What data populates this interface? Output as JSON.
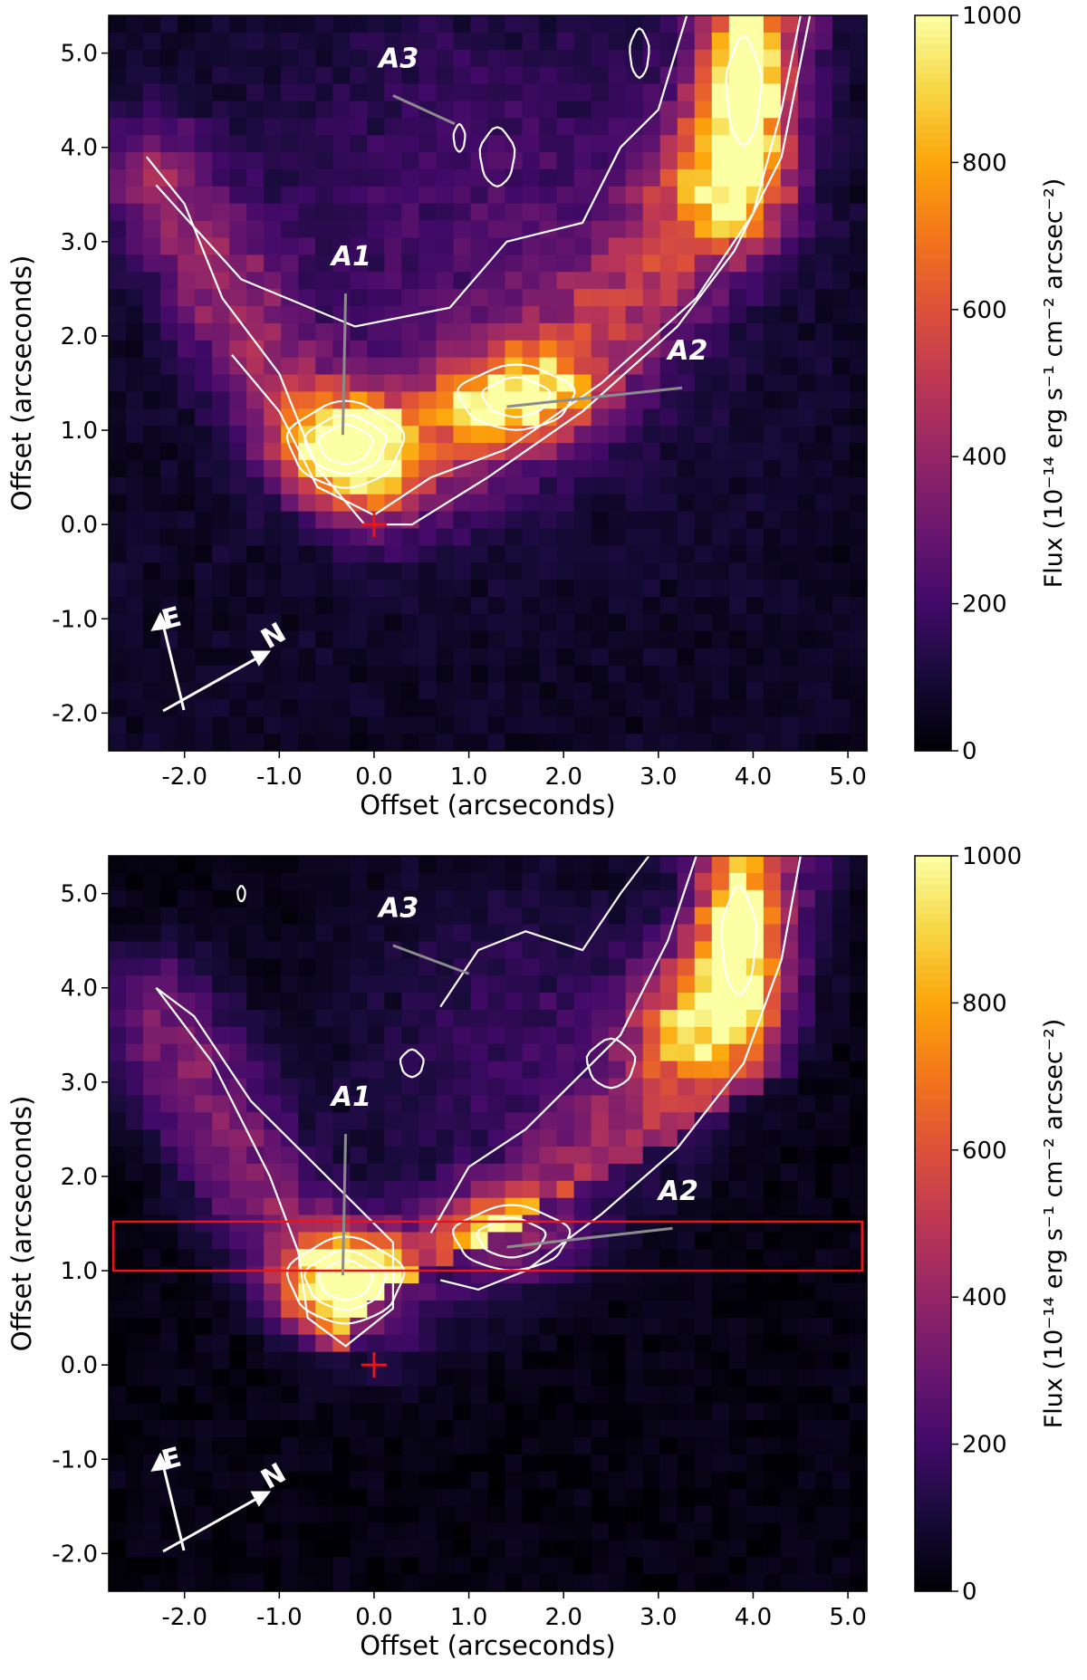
{
  "chart_data": [
    {
      "type": "heatmap",
      "panel": "top",
      "title": "",
      "xlabel": "Offset (arcseconds)",
      "ylabel": "Offset (arcseconds)",
      "xlim": [
        -2.8,
        5.2
      ],
      "ylim": [
        -2.4,
        5.4
      ],
      "xticks": [
        -2.0,
        -1.0,
        0.0,
        1.0,
        2.0,
        3.0,
        4.0,
        5.0
      ],
      "xtick_labels": [
        "-2.0",
        "-1.0",
        "0.0",
        "1.0",
        "2.0",
        "3.0",
        "4.0",
        "5.0"
      ],
      "yticks": [
        -2.0,
        -1.0,
        0.0,
        1.0,
        2.0,
        3.0,
        4.0,
        5.0
      ],
      "ytick_labels": [
        "-2.0",
        "-1.0",
        "0.0",
        "1.0",
        "2.0",
        "3.0",
        "4.0",
        "5.0"
      ],
      "colormap": "inferno",
      "colorbar": {
        "label": "Flux (10⁻¹⁴ erg s⁻¹ cm⁻² arcsec⁻²)",
        "range": [
          0,
          1000
        ],
        "ticks": [
          0,
          200,
          400,
          600,
          800,
          1000
        ],
        "tick_labels": [
          "0",
          "200",
          "400",
          "600",
          "800",
          "1000"
        ]
      },
      "emission_peaks": [
        {
          "x": -0.3,
          "y": 0.85,
          "peak": 1000
        },
        {
          "x": 1.5,
          "y": 1.35,
          "peak": 650
        },
        {
          "x": 3.9,
          "y": 4.6,
          "peak": 900
        },
        {
          "x": 3.7,
          "y": 3.6,
          "peak": 520
        }
      ],
      "annotations": [
        {
          "label": "A1",
          "text_x": -0.45,
          "text_y": 2.75,
          "point_x": -0.33,
          "point_y": 0.95
        },
        {
          "label": "A2",
          "text_x": 3.1,
          "text_y": 1.75,
          "point_x": 1.4,
          "point_y": 1.25
        },
        {
          "label": "A3",
          "text_x": 0.05,
          "text_y": 4.85,
          "point_x": 0.85,
          "point_y": 4.25
        }
      ],
      "source_marker": {
        "x": 0.0,
        "y": 0.0,
        "symbol": "+",
        "color": "#e8161a"
      },
      "compass": {
        "labels": [
          "E",
          "N"
        ]
      },
      "extraction_box": null
    },
    {
      "type": "heatmap",
      "panel": "bottom",
      "title": "",
      "xlabel": "Offset (arcseconds)",
      "ylabel": "Offset (arcseconds)",
      "xlim": [
        -2.8,
        5.2
      ],
      "ylim": [
        -2.4,
        5.4
      ],
      "xticks": [
        -2.0,
        -1.0,
        0.0,
        1.0,
        2.0,
        3.0,
        4.0,
        5.0
      ],
      "xtick_labels": [
        "-2.0",
        "-1.0",
        "0.0",
        "1.0",
        "2.0",
        "3.0",
        "4.0",
        "5.0"
      ],
      "yticks": [
        -2.0,
        -1.0,
        0.0,
        1.0,
        2.0,
        3.0,
        4.0,
        5.0
      ],
      "ytick_labels": [
        "-2.0",
        "-1.0",
        "0.0",
        "1.0",
        "2.0",
        "3.0",
        "4.0",
        "5.0"
      ],
      "colormap": "inferno",
      "colorbar": {
        "label": "Flux (10⁻¹⁴ erg s⁻¹ cm⁻² arcsec⁻²)",
        "range": [
          0,
          1000
        ],
        "ticks": [
          0,
          200,
          400,
          600,
          800,
          1000
        ],
        "tick_labels": [
          "0",
          "200",
          "400",
          "600",
          "800",
          "1000"
        ]
      },
      "emission_peaks": [
        {
          "x": -0.3,
          "y": 0.9,
          "peak": 1000
        },
        {
          "x": 1.45,
          "y": 1.35,
          "peak": 560
        },
        {
          "x": 3.85,
          "y": 4.5,
          "peak": 820
        },
        {
          "x": 3.4,
          "y": 3.6,
          "peak": 520
        }
      ],
      "annotations": [
        {
          "label": "A1",
          "text_x": -0.45,
          "text_y": 2.75,
          "point_x": -0.33,
          "point_y": 0.95
        },
        {
          "label": "A2",
          "text_x": 3.0,
          "text_y": 1.75,
          "point_x": 1.4,
          "point_y": 1.25
        },
        {
          "label": "A3",
          "text_x": 0.05,
          "text_y": 4.75,
          "point_x": 1.0,
          "point_y": 4.15
        }
      ],
      "source_marker": {
        "x": 0.0,
        "y": 0.0,
        "symbol": "+",
        "color": "#e8161a"
      },
      "compass": {
        "labels": [
          "E",
          "N"
        ]
      },
      "extraction_box": {
        "x0": -2.75,
        "x1": 5.15,
        "y0": 1.0,
        "y1": 1.52,
        "color": "#e8161a"
      }
    }
  ]
}
